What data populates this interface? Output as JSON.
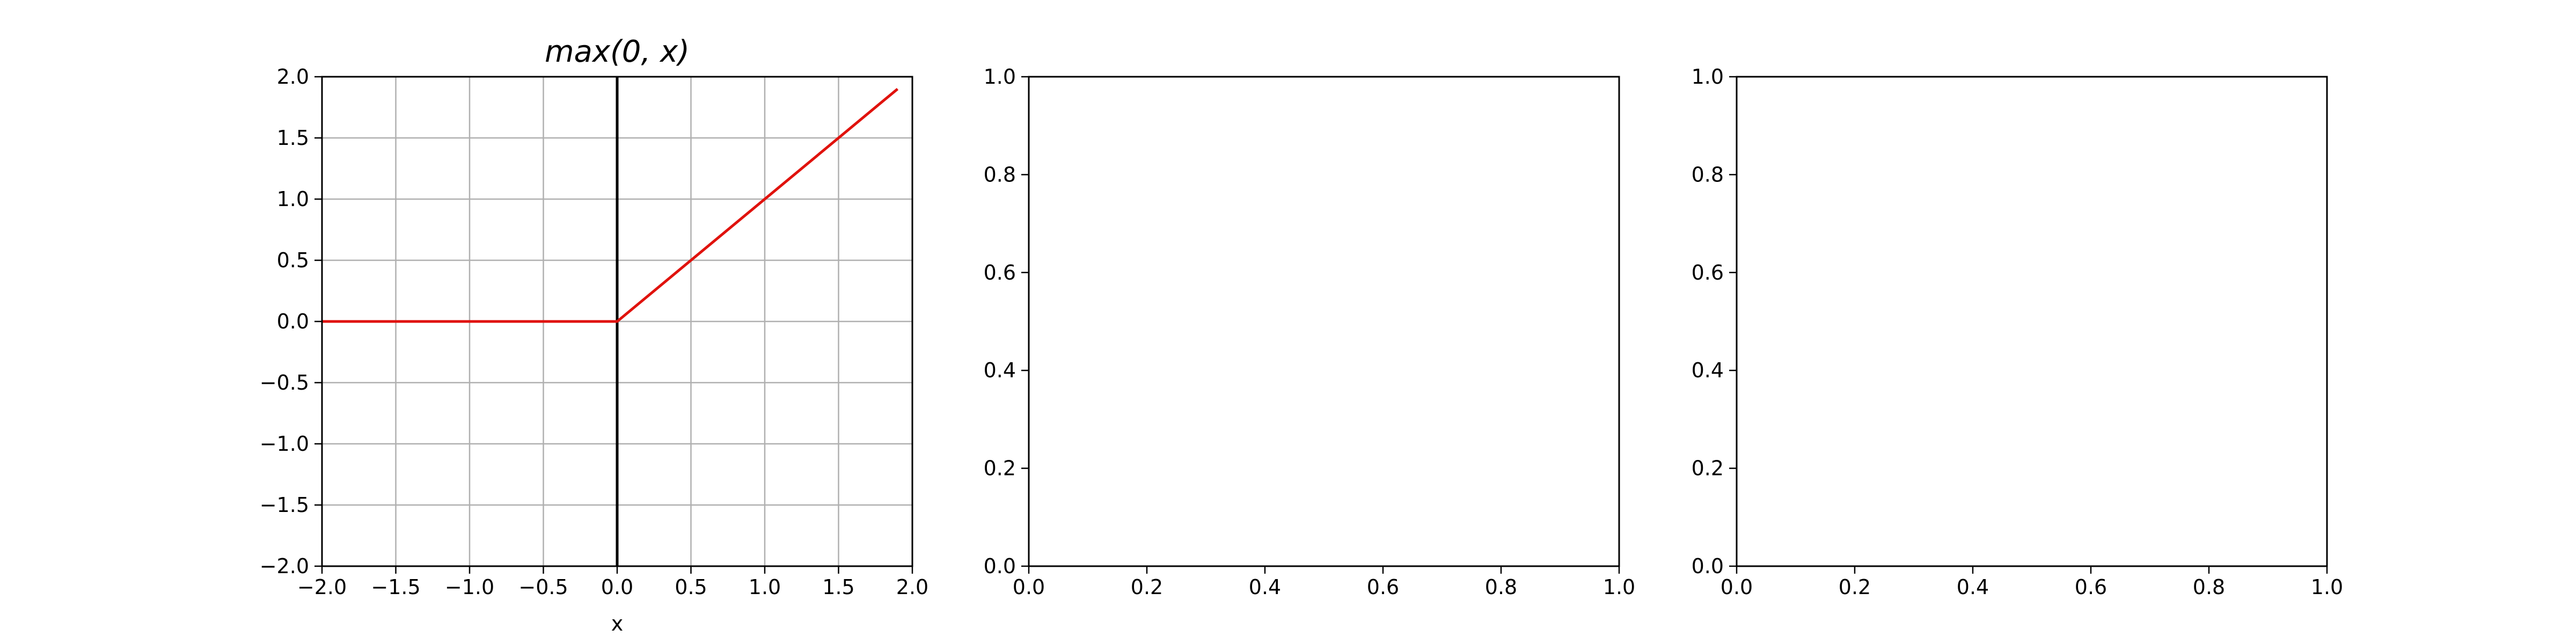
{
  "colors": {
    "background": "#ffffff",
    "axes_edge": "#000000",
    "grid": "#b0b0b0",
    "relu_line": "#e0120d",
    "vline": "#000000"
  },
  "chart_data": [
    {
      "type": "line",
      "title": "max(0, x)",
      "xlabel": "x",
      "ylabel": "",
      "xlim": [
        -2.0,
        2.0
      ],
      "ylim": [
        -2.0,
        2.0
      ],
      "grid": true,
      "xticks": [
        -2.0,
        -1.5,
        -1.0,
        -0.5,
        0.0,
        0.5,
        1.0,
        1.5,
        2.0
      ],
      "yticks": [
        -2.0,
        -1.5,
        -1.0,
        -0.5,
        0.0,
        0.5,
        1.0,
        1.5,
        2.0
      ],
      "xtick_labels": [
        "−2.0",
        "−1.5",
        "−1.0",
        "−0.5",
        "0.0",
        "0.5",
        "1.0",
        "1.5",
        "2.0"
      ],
      "ytick_labels": [
        "−2.0",
        "−1.5",
        "−1.0",
        "−0.5",
        "0.0",
        "0.5",
        "1.0",
        "1.5",
        "2.0"
      ],
      "series": [
        {
          "color": "#e0120d",
          "x": [
            -2.0,
            0.0,
            1.9
          ],
          "y": [
            0.0,
            0.0,
            1.9
          ]
        }
      ],
      "vlines": [
        0.0
      ]
    },
    {
      "type": "line",
      "title": "",
      "xlabel": "",
      "ylabel": "",
      "xlim": [
        0.0,
        1.0
      ],
      "ylim": [
        0.0,
        1.0
      ],
      "grid": false,
      "xticks": [
        0.0,
        0.2,
        0.4,
        0.6,
        0.8,
        1.0
      ],
      "yticks": [
        0.0,
        0.2,
        0.4,
        0.6,
        0.8,
        1.0
      ],
      "xtick_labels": [
        "0.0",
        "0.2",
        "0.4",
        "0.6",
        "0.8",
        "1.0"
      ],
      "ytick_labels": [
        "0.0",
        "0.2",
        "0.4",
        "0.6",
        "0.8",
        "1.0"
      ],
      "series": [],
      "vlines": []
    },
    {
      "type": "line",
      "title": "",
      "xlabel": "",
      "ylabel": "",
      "xlim": [
        0.0,
        1.0
      ],
      "ylim": [
        0.0,
        1.0
      ],
      "grid": false,
      "xticks": [
        0.0,
        0.2,
        0.4,
        0.6,
        0.8,
        1.0
      ],
      "yticks": [
        0.0,
        0.2,
        0.4,
        0.6,
        0.8,
        1.0
      ],
      "xtick_labels": [
        "0.0",
        "0.2",
        "0.4",
        "0.6",
        "0.8",
        "1.0"
      ],
      "ytick_labels": [
        "0.0",
        "0.2",
        "0.4",
        "0.6",
        "0.8",
        "1.0"
      ],
      "series": [],
      "vlines": []
    }
  ]
}
